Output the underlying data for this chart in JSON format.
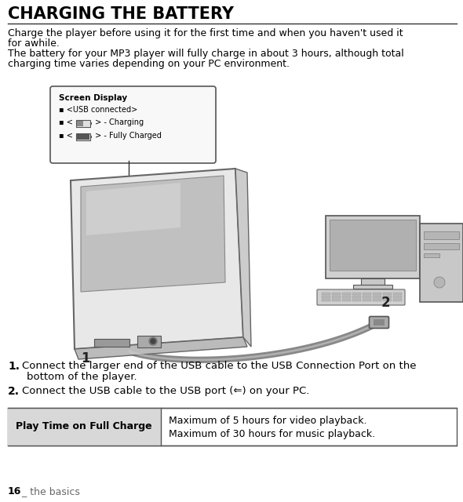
{
  "title": "CHARGING THE BATTERY",
  "para1_line1": "Charge the player before using it for the first time and when you haven't used it",
  "para1_line2": "for awhile.",
  "para2_line1": "The battery for your MP3 player will fully charge in about 3 hours, although total",
  "para2_line2": "charging time varies depending on your PC environment.",
  "step1_num": "1.",
  "step1_line1": "Connect the larger end of the USB cable to the USB Connection Port on the",
  "step1_line2": "bottom of the player.",
  "step2_num": "2.",
  "step2_text": "Connect the USB cable to the USB port (⇐) on your PC.",
  "table_header": "Play Time on Full Charge",
  "table_row1": "Maximum of 5 hours for video playback.",
  "table_row2": "Maximum of 30 hours for music playback.",
  "footer_num": "16",
  "footer_text": " _ the basics",
  "screen_display_title": "Screen Display",
  "screen_line1": "<USB connected>",
  "screen_line2": "> - Charging",
  "screen_line3": "> - Fully Charged",
  "bg_color": "#ffffff",
  "text_color": "#000000",
  "gray_color": "#666666",
  "table_header_bg": "#dddddd",
  "callout_bg": "#f8f8f8",
  "callout_border": "#555555"
}
